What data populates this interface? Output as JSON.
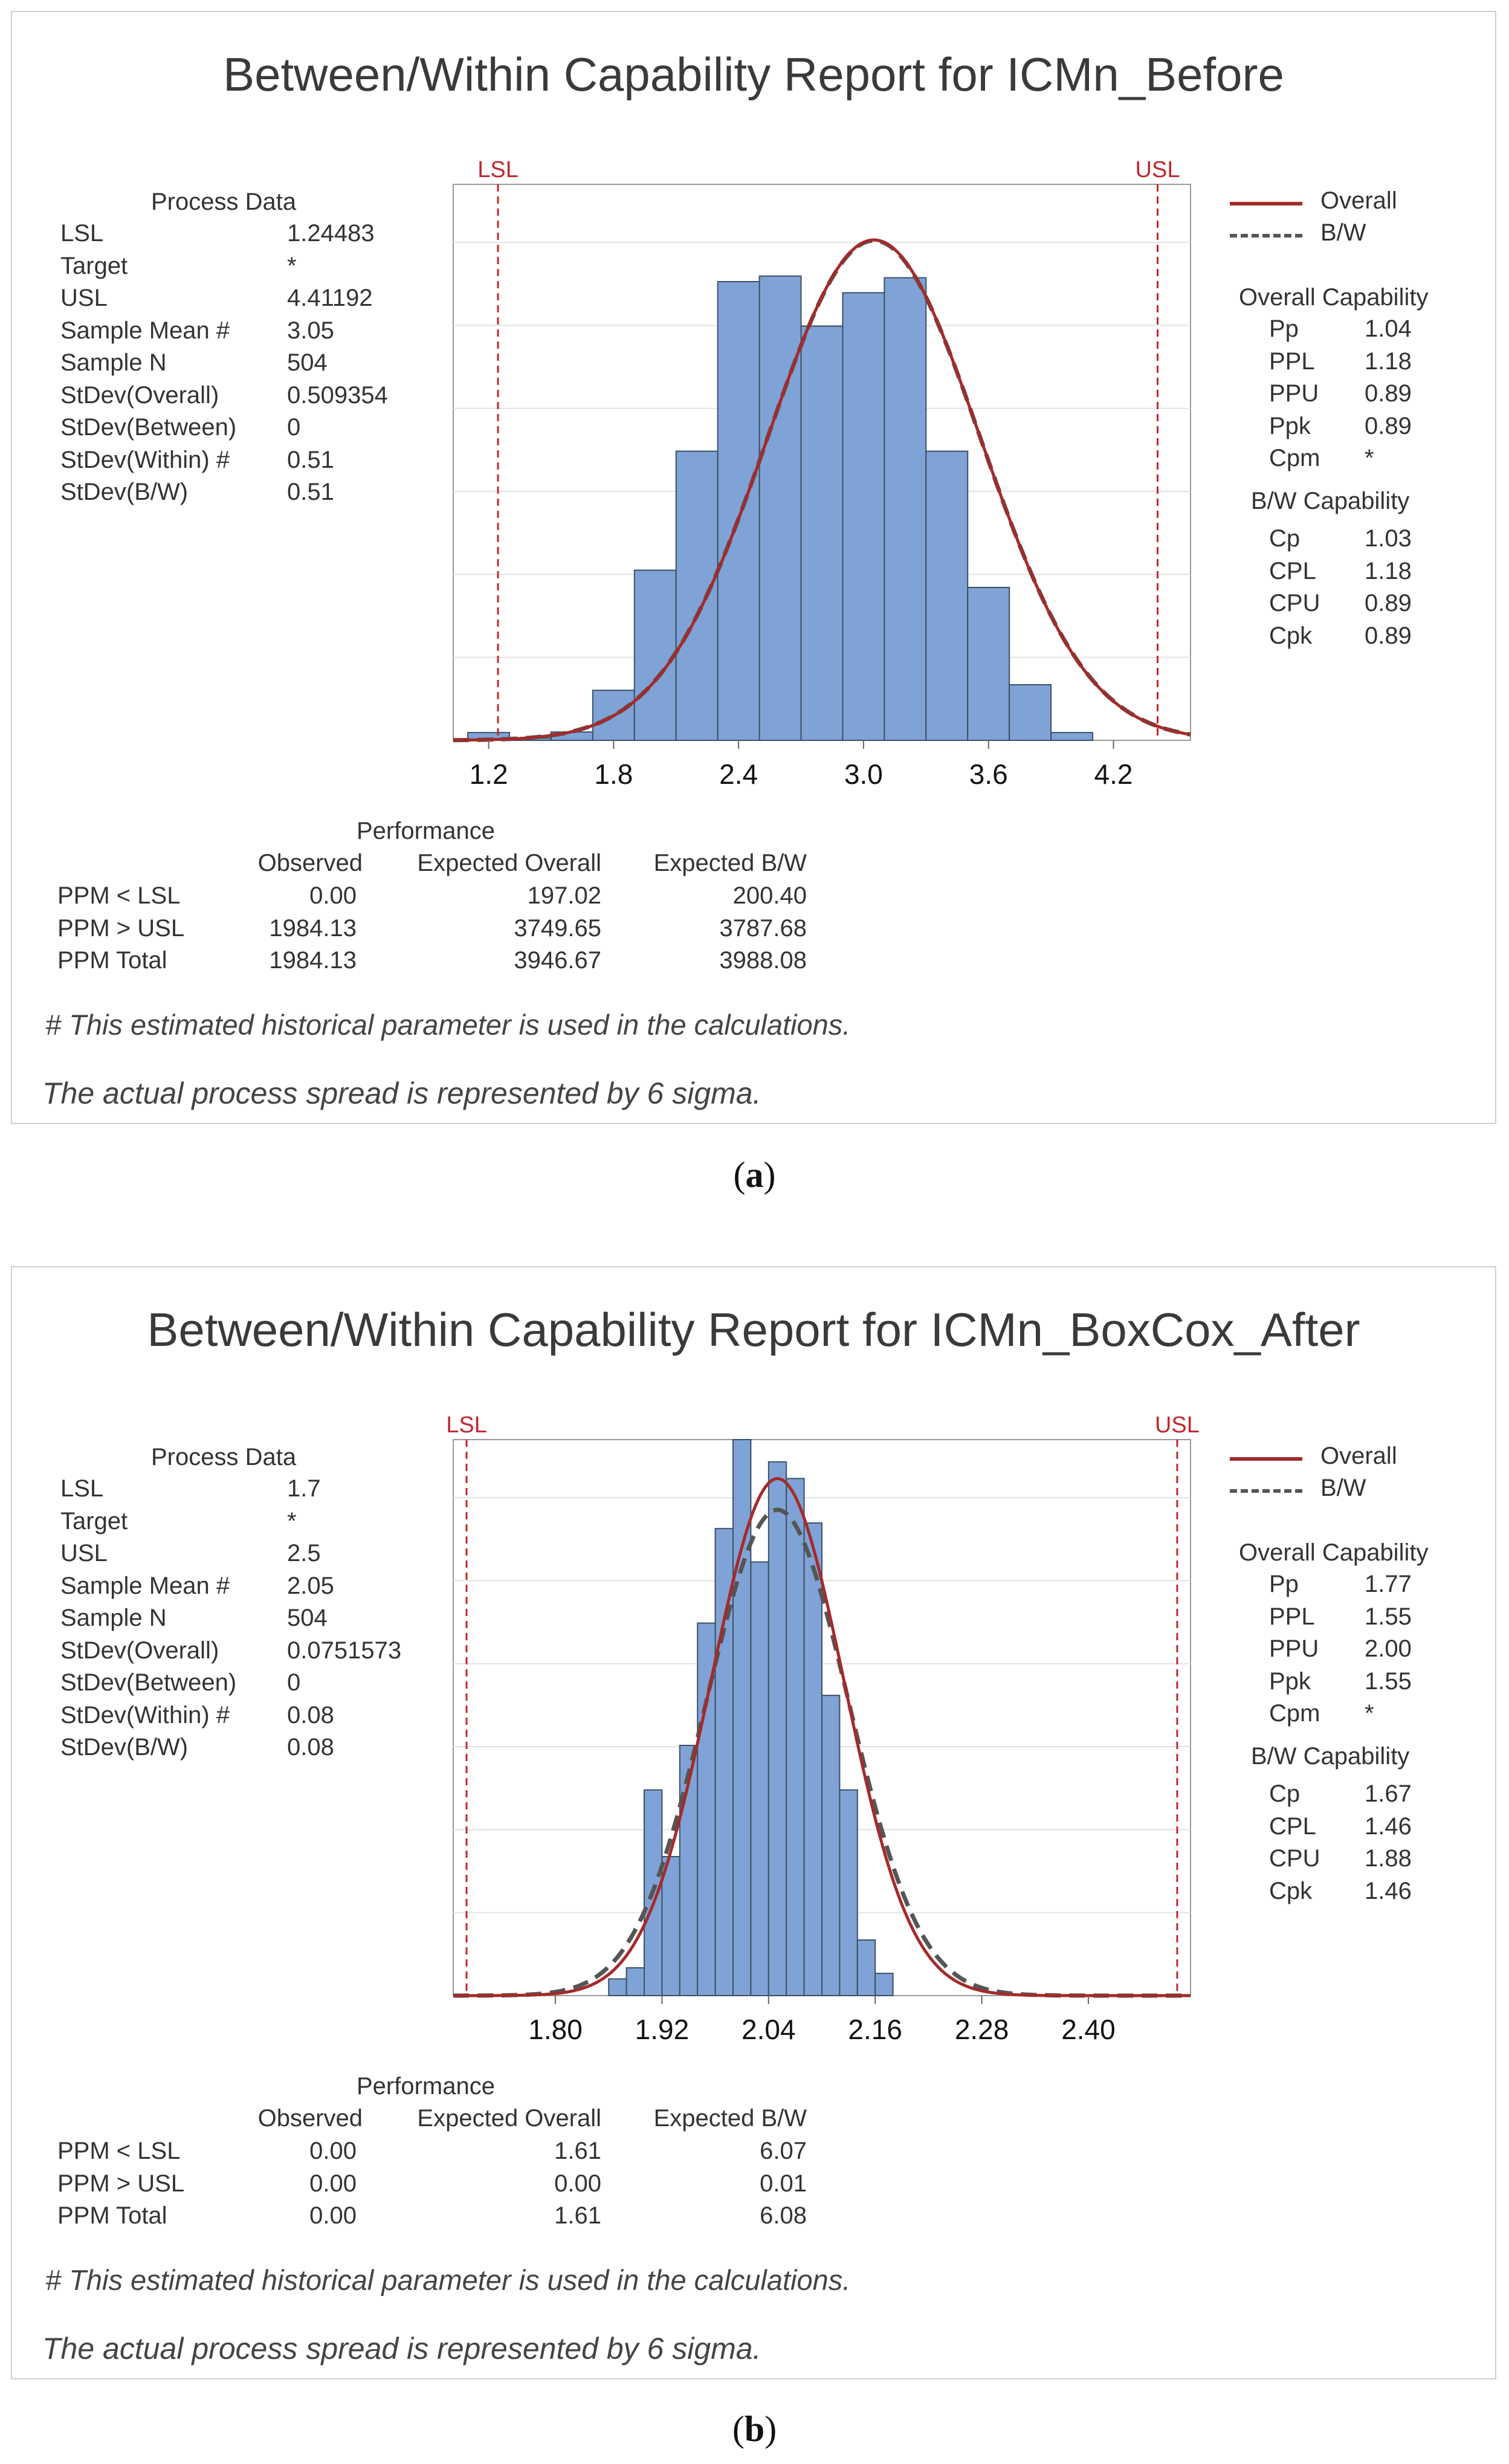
{
  "panels": [
    {
      "caption": "a",
      "title": "Between/Within Capability Report for ICMn_Before",
      "process_data": {
        "heading": "Process Data",
        "rows": [
          {
            "label": "LSL",
            "value": "1.24483"
          },
          {
            "label": "Target",
            "value": "*"
          },
          {
            "label": "USL",
            "value": "4.41192"
          },
          {
            "label": "Sample Mean #",
            "value": "3.05"
          },
          {
            "label": "Sample N",
            "value": "504"
          },
          {
            "label": "StDev(Overall)",
            "value": "0.509354"
          },
          {
            "label": "StDev(Between)",
            "value": "0"
          },
          {
            "label": "StDev(Within) #",
            "value": "0.51"
          },
          {
            "label": "StDev(B/W)",
            "value": "0.51"
          }
        ]
      },
      "legend": {
        "overall": "Overall",
        "bw": "B/W"
      },
      "overall_capability": {
        "heading": "Overall Capability",
        "rows": [
          {
            "label": "Pp",
            "value": "1.04"
          },
          {
            "label": "PPL",
            "value": "1.18"
          },
          {
            "label": "PPU",
            "value": "0.89"
          },
          {
            "label": "Ppk",
            "value": "0.89"
          },
          {
            "label": "Cpm",
            "value": "*"
          }
        ]
      },
      "bw_capability": {
        "heading": "B/W Capability",
        "rows": [
          {
            "label": "Cp",
            "value": "1.03"
          },
          {
            "label": "CPL",
            "value": "1.18"
          },
          {
            "label": "CPU",
            "value": "0.89"
          },
          {
            "label": "Cpk",
            "value": "0.89"
          }
        ]
      },
      "performance": {
        "heading": "Performance",
        "columns": [
          "Observed",
          "Expected Overall",
          "Expected B/W"
        ],
        "rows": [
          {
            "label": "PPM < LSL",
            "values": [
              "0.00",
              "197.02",
              "200.40"
            ]
          },
          {
            "label": "PPM > USL",
            "values": [
              "1984.13",
              "3749.65",
              "3787.68"
            ]
          },
          {
            "label": "PPM Total",
            "values": [
              "1984.13",
              "3946.67",
              "3988.08"
            ]
          }
        ]
      },
      "note_historical": "# This estimated historical parameter is used in the calculations.",
      "note_spread": "The actual process spread is represented by 6 sigma.",
      "chart_data": {
        "type": "bar",
        "lsl_label": "LSL",
        "usl_label": "USL",
        "lsl": 1.24483,
        "usl": 4.41192,
        "xlim": [
          1.03,
          4.57
        ],
        "ylim": [
          0,
          1.0
        ],
        "xticks": [
          "1.2",
          "1.8",
          "2.4",
          "3.0",
          "3.6",
          "4.2"
        ],
        "xtick_values": [
          1.2,
          1.8,
          2.4,
          3.0,
          3.6,
          4.2
        ],
        "bin_start": 1.1,
        "bin_width": 0.2,
        "bars": [
          0.014,
          0.004,
          0.015,
          0.09,
          0.306,
          0.52,
          0.825,
          0.835,
          0.745,
          0.805,
          0.832,
          0.52,
          0.275,
          0.1,
          0.014
        ],
        "mean": 3.05,
        "sd_overall": 0.509354,
        "sd_bw": 0.51,
        "curve_peak": 0.9,
        "colors": {
          "bar_fill": "#7fa3d6",
          "bar_stroke": "#3d4f66",
          "overall": "#a52a2a",
          "bw": "#555555",
          "spec": "#c0272d",
          "grid": "#e3e3e3"
        }
      }
    },
    {
      "caption": "b",
      "title": "Between/Within Capability Report for ICMn_BoxCox_After",
      "process_data": {
        "heading": "Process Data",
        "rows": [
          {
            "label": "LSL",
            "value": "1.7"
          },
          {
            "label": "Target",
            "value": "*"
          },
          {
            "label": "USL",
            "value": "2.5"
          },
          {
            "label": "Sample Mean #",
            "value": "2.05"
          },
          {
            "label": "Sample N",
            "value": "504"
          },
          {
            "label": "StDev(Overall)",
            "value": "0.0751573"
          },
          {
            "label": "StDev(Between)",
            "value": "0"
          },
          {
            "label": "StDev(Within) #",
            "value": "0.08"
          },
          {
            "label": "StDev(B/W)",
            "value": "0.08"
          }
        ]
      },
      "legend": {
        "overall": "Overall",
        "bw": "B/W"
      },
      "overall_capability": {
        "heading": "Overall Capability",
        "rows": [
          {
            "label": "Pp",
            "value": "1.77"
          },
          {
            "label": "PPL",
            "value": "1.55"
          },
          {
            "label": "PPU",
            "value": "2.00"
          },
          {
            "label": "Ppk",
            "value": "1.55"
          },
          {
            "label": "Cpm",
            "value": "*"
          }
        ]
      },
      "bw_capability": {
        "heading": "B/W Capability",
        "rows": [
          {
            "label": "Cp",
            "value": "1.67"
          },
          {
            "label": "CPL",
            "value": "1.46"
          },
          {
            "label": "CPU",
            "value": "1.88"
          },
          {
            "label": "Cpk",
            "value": "1.46"
          }
        ]
      },
      "performance": {
        "heading": "Performance",
        "columns": [
          "Observed",
          "Expected Overall",
          "Expected B/W"
        ],
        "rows": [
          {
            "label": "PPM < LSL",
            "values": [
              "0.00",
              "1.61",
              "6.07"
            ]
          },
          {
            "label": "PPM > USL",
            "values": [
              "0.00",
              "0.00",
              "0.01"
            ]
          },
          {
            "label": "PPM Total",
            "values": [
              "0.00",
              "1.61",
              "6.08"
            ]
          }
        ]
      },
      "note_historical": "# This estimated historical parameter is used in the calculations.",
      "note_spread": "The actual process spread is represented by 6 sigma.",
      "chart_data": {
        "type": "bar",
        "lsl_label": "LSL",
        "usl_label": "USL",
        "lsl": 1.7,
        "usl": 2.5,
        "xlim": [
          1.685,
          2.515
        ],
        "ylim": [
          0,
          1.0
        ],
        "xticks": [
          "1.80",
          "1.92",
          "2.04",
          "2.16",
          "2.28",
          "2.40"
        ],
        "xtick_values": [
          1.8,
          1.92,
          2.04,
          2.16,
          2.28,
          2.4
        ],
        "bin_start": 1.86,
        "bin_width": 0.02,
        "bars": [
          0.03,
          0.05,
          0.37,
          0.25,
          0.45,
          0.67,
          0.84,
          1.0,
          0.78,
          0.96,
          0.93,
          0.85,
          0.54,
          0.37,
          0.1,
          0.04
        ],
        "mean": 2.05,
        "sd_overall": 0.0751573,
        "sd_bw": 0.08,
        "curve_peak": 0.93,
        "colors": {
          "bar_fill": "#7fa3d6",
          "bar_stroke": "#3d4f66",
          "overall": "#a52a2a",
          "bw": "#555555",
          "spec": "#c0272d",
          "grid": "#e3e3e3"
        }
      }
    }
  ]
}
